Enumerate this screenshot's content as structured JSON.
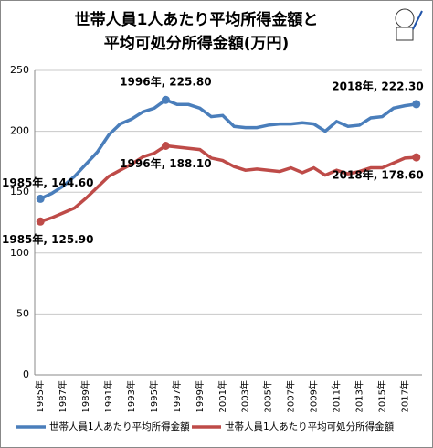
{
  "chart_data": {
    "type": "line",
    "title_lines": [
      "世帯人員1人あたり平均所得金額と",
      "平均可処分所得金額(万円)"
    ],
    "categories": [
      "1985年",
      null,
      "1987年",
      null,
      "1989年",
      null,
      "1991年",
      null,
      "1993年",
      null,
      "1995年",
      null,
      "1997年",
      null,
      "1999年",
      null,
      "2001年",
      null,
      "2003年",
      null,
      "2005年",
      null,
      "2007年",
      null,
      "2009年",
      null,
      "2011年",
      null,
      "2013年",
      null,
      "2015年",
      null,
      "2017年",
      null
    ],
    "series": [
      {
        "name": "世帯人員1人あたり平均所得金額",
        "color": "#4a7ebb",
        "values": [
          144.6,
          149,
          155,
          163,
          173,
          183,
          197,
          206,
          210,
          216,
          219,
          225.8,
          222,
          222,
          219,
          212,
          213,
          204,
          203,
          203,
          205,
          206,
          206,
          207,
          206,
          200,
          208,
          204,
          205,
          211,
          212,
          219,
          221,
          222.3
        ],
        "value_labels": [
          "1985年, 144.60",
          null,
          null,
          null,
          null,
          null,
          null,
          null,
          null,
          null,
          null,
          "1996年, 225.80",
          null,
          null,
          null,
          null,
          null,
          null,
          null,
          null,
          null,
          null,
          null,
          null,
          null,
          null,
          null,
          null,
          null,
          null,
          null,
          null,
          null,
          "2018年, 222.30"
        ]
      },
      {
        "name": "世帯人員1人あたり平均可処分所得金額",
        "color": "#be4b48",
        "values": [
          125.9,
          129,
          133,
          137,
          145,
          154,
          163,
          168,
          173,
          179,
          182,
          188.1,
          187,
          186,
          185,
          178,
          176,
          171,
          168,
          169,
          168,
          167,
          170,
          166,
          170,
          164,
          168,
          165,
          167,
          170,
          170,
          174,
          178,
          178.6
        ],
        "value_labels": [
          "1985年, 125.90",
          null,
          null,
          null,
          null,
          null,
          null,
          null,
          null,
          null,
          null,
          "1996年, 188.10",
          null,
          null,
          null,
          null,
          null,
          null,
          null,
          null,
          null,
          null,
          null,
          null,
          null,
          null,
          null,
          null,
          null,
          null,
          null,
          null,
          null,
          "2018年, 178.60"
        ]
      }
    ],
    "ylim": [
      0,
      250
    ],
    "yticks": [
      0,
      50,
      100,
      150,
      200,
      250
    ],
    "grid": true
  }
}
